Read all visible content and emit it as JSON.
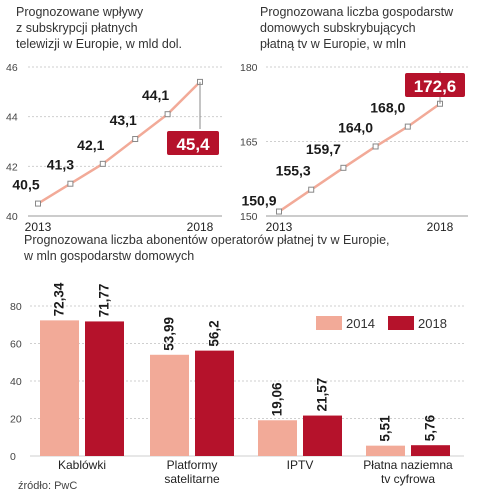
{
  "chart_data": [
    {
      "type": "line",
      "title": "Prognozowane wpływy\nz subskrypcji płatnych\ntelewizji w Europie, w mld dol.",
      "x": [
        2013,
        2014,
        2015,
        2016,
        2017,
        2018
      ],
      "xticks": [
        "2013",
        "2018"
      ],
      "values": [
        40.5,
        41.3,
        42.1,
        43.1,
        44.1,
        45.4
      ],
      "labels": [
        "40,5",
        "41,3",
        "42,1",
        "43,1",
        "44,1",
        "45,4"
      ],
      "ylim": [
        40,
        46
      ],
      "yticks": [
        "40",
        "42",
        "44",
        "46"
      ],
      "highlight_color": "#b5122b",
      "line_color": "#f2aa98"
    },
    {
      "type": "line",
      "title": "Prognozowana liczba gospodarstw\ndomowych subskrybujących\npłatną tv w Europie, w mln",
      "x": [
        2013,
        2014,
        2015,
        2016,
        2017,
        2018
      ],
      "xticks": [
        "2013",
        "2018"
      ],
      "values": [
        150.9,
        155.3,
        159.7,
        164.0,
        168.0,
        172.6
      ],
      "labels": [
        "150,9",
        "155,3",
        "159,7",
        "164,0",
        "168,0",
        "172,6"
      ],
      "ylim": [
        150,
        180
      ],
      "yticks": [
        "150",
        "165",
        "180"
      ],
      "highlight_color": "#b5122b",
      "line_color": "#f2aa98"
    },
    {
      "type": "bar",
      "title": "Prognozowana liczba abonentów operatorów płatnej tv w Europie,\nw mln gospodarstw domowych",
      "categories": [
        "Kablówki",
        "Platformy\nsatelitarne",
        "IPTV",
        "Płatna naziemna\ntv cyfrowa"
      ],
      "series": [
        {
          "name": "2014",
          "values": [
            72.34,
            53.99,
            19.06,
            5.51
          ],
          "labels": [
            "72,34",
            "53,99",
            "19,06",
            "5,51"
          ],
          "color": "#f2aa98"
        },
        {
          "name": "2018",
          "values": [
            71.77,
            56.2,
            21.57,
            5.76
          ],
          "labels": [
            "71,77",
            "56,2",
            "21,57",
            "5,76"
          ],
          "color": "#b5122b"
        }
      ],
      "ylim": [
        0,
        80
      ],
      "yticks": [
        "0",
        "20",
        "40",
        "60",
        "80"
      ],
      "legend": "top-right"
    }
  ],
  "source": "źródło: PwC"
}
